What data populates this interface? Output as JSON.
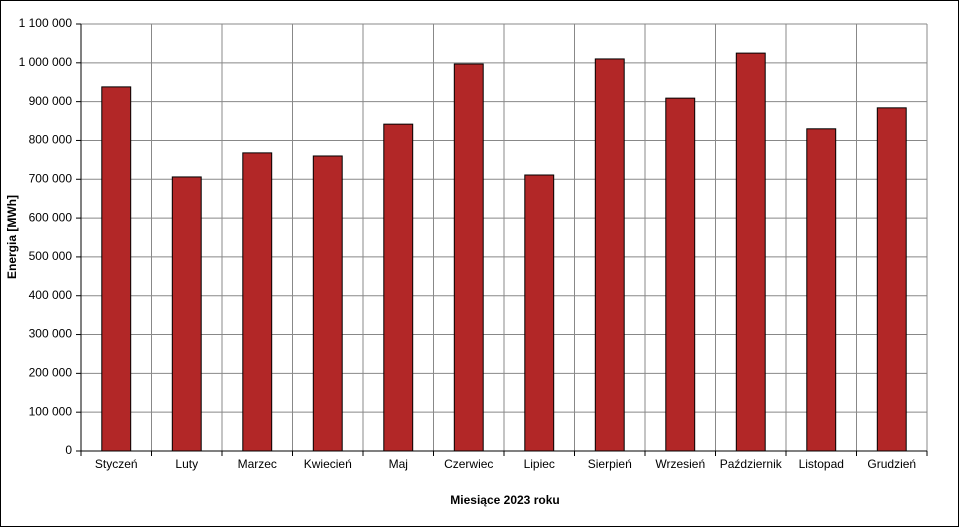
{
  "chart_data": {
    "type": "bar",
    "y_label": "Energia [MWh]",
    "x_label": "Miesiące 2023 roku",
    "categories": [
      "Styczeń",
      "Luty",
      "Marzec",
      "Kwiecień",
      "Maj",
      "Czerwiec",
      "Lipiec",
      "Sierpień",
      "Wrzesień",
      "Październik",
      "Listopad",
      "Grudzień"
    ],
    "values": [
      938000,
      706000,
      768000,
      760000,
      842000,
      997000,
      711000,
      1010000,
      909000,
      1025000,
      830000,
      884000
    ],
    "color": "#b22727",
    "ylim": [
      0,
      1100000
    ],
    "yticks": [
      0,
      {
        "value": 100000,
        "label": "100 000"
      },
      {
        "value": 200000,
        "label": "200 000"
      },
      {
        "value": 300000,
        "label": "300 000"
      },
      {
        "value": 400000,
        "label": "400 000"
      },
      {
        "value": 500000,
        "label": "500 000"
      },
      {
        "value": 600000,
        "label": "600 000"
      },
      {
        "value": 700000,
        "label": "700 000"
      },
      {
        "value": 800000,
        "label": "800 000"
      },
      {
        "value": 900000,
        "label": "900 000"
      },
      {
        "value": 1000000,
        "label": "1 000 000"
      },
      {
        "value": 1100000,
        "label": "1 100 000"
      }
    ],
    "grid": true
  }
}
